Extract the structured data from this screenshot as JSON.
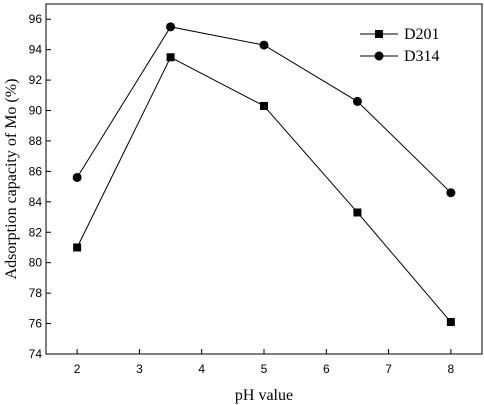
{
  "chart_data": {
    "type": "line",
    "title": "",
    "xlabel": "pH value",
    "ylabel": "Adsorption capacity of Mo (%)",
    "xlim": [
      1.5,
      8.5
    ],
    "ylim": [
      74,
      97
    ],
    "x_ticks": [
      2,
      3,
      4,
      5,
      6,
      7,
      8
    ],
    "y_ticks": [
      74,
      76,
      78,
      80,
      82,
      84,
      86,
      88,
      90,
      92,
      94,
      96
    ],
    "grid": false,
    "legend_position": "top-right",
    "series": [
      {
        "name": "D201",
        "marker": "square",
        "color": "#000000",
        "x": [
          2,
          3.5,
          5,
          6.5,
          8
        ],
        "y": [
          81.0,
          93.5,
          90.3,
          83.3,
          76.1
        ]
      },
      {
        "name": "D314",
        "marker": "circle",
        "color": "#000000",
        "x": [
          2,
          3.5,
          5,
          6.5,
          8
        ],
        "y": [
          85.6,
          95.5,
          94.3,
          90.6,
          84.6
        ]
      }
    ]
  }
}
